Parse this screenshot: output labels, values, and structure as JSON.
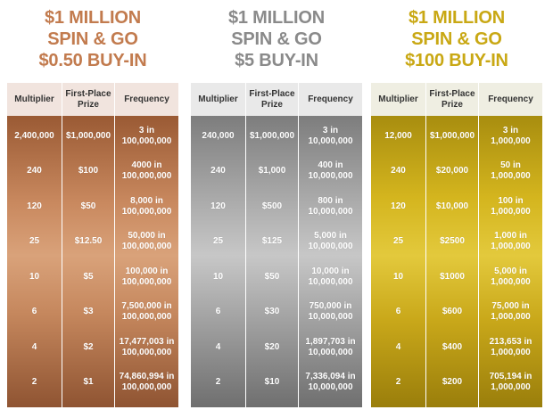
{
  "panels": [
    {
      "title": [
        "$1 MILLION",
        "SPIN & GO",
        "$0.50 BUY-IN"
      ],
      "headers": [
        "Multiplier",
        "First-Place\nPrize",
        "Frequency"
      ],
      "rows": [
        {
          "multiplier": "2,400,000",
          "prize": "$1,000,000",
          "frequency": "3 in\n100,000,000"
        },
        {
          "multiplier": "240",
          "prize": "$100",
          "frequency": "4000 in\n100,000,000"
        },
        {
          "multiplier": "120",
          "prize": "$50",
          "frequency": "8,000 in\n100,000,000"
        },
        {
          "multiplier": "25",
          "prize": "$12.50",
          "frequency": "50,000 in\n100,000,000"
        },
        {
          "multiplier": "10",
          "prize": "$5",
          "frequency": "100,000 in\n100,000,000"
        },
        {
          "multiplier": "6",
          "prize": "$3",
          "frequency": "7,500,000 in\n100,000,000"
        },
        {
          "multiplier": "4",
          "prize": "$2",
          "frequency": "17,477,003 in\n100,000,000"
        },
        {
          "multiplier": "2",
          "prize": "$1",
          "frequency": "74,860,994 in\n100,000,000"
        }
      ]
    },
    {
      "title": [
        "$1 MILLION",
        "SPIN & GO",
        "$5 BUY-IN"
      ],
      "headers": [
        "Multiplier",
        "First-Place\nPrize",
        "Frequency"
      ],
      "rows": [
        {
          "multiplier": "240,000",
          "prize": "$1,000,000",
          "frequency": "3 in\n10,000,000"
        },
        {
          "multiplier": "240",
          "prize": "$1,000",
          "frequency": "400 in\n10,000,000"
        },
        {
          "multiplier": "120",
          "prize": "$500",
          "frequency": "800 in\n10,000,000"
        },
        {
          "multiplier": "25",
          "prize": "$125",
          "frequency": "5,000 in\n10,000,000"
        },
        {
          "multiplier": "10",
          "prize": "$50",
          "frequency": "10,000 in\n10,000,000"
        },
        {
          "multiplier": "6",
          "prize": "$30",
          "frequency": "750,000 in\n10,000,000"
        },
        {
          "multiplier": "4",
          "prize": "$20",
          "frequency": "1,897,703 in\n10,000,000"
        },
        {
          "multiplier": "2",
          "prize": "$10",
          "frequency": "7,336,094 in\n10,000,000"
        }
      ]
    },
    {
      "title": [
        "$1 MILLION",
        "SPIN & GO",
        "$100 BUY-IN"
      ],
      "headers": [
        "Multiplier",
        "First-Place\nPrize",
        "Frequency"
      ],
      "rows": [
        {
          "multiplier": "12,000",
          "prize": "$1,000,000",
          "frequency": "3 in\n1,000,000"
        },
        {
          "multiplier": "240",
          "prize": "$20,000",
          "frequency": "50 in\n1,000,000"
        },
        {
          "multiplier": "120",
          "prize": "$10,000",
          "frequency": "100 in\n1,000,000"
        },
        {
          "multiplier": "25",
          "prize": "$2500",
          "frequency": "1,000 in\n1,000,000"
        },
        {
          "multiplier": "10",
          "prize": "$1000",
          "frequency": "5,000 in\n1,000,000"
        },
        {
          "multiplier": "6",
          "prize": "$600",
          "frequency": "75,000 in\n1,000,000"
        },
        {
          "multiplier": "4",
          "prize": "$400",
          "frequency": "213,653 in\n1,000,000"
        },
        {
          "multiplier": "2",
          "prize": "$200",
          "frequency": "705,194 in\n1,000,000"
        }
      ]
    }
  ],
  "colors": {
    "bronze_title": "#c27b4e",
    "silver_title": "#8a8a8a",
    "gold_title": "#c9a814"
  }
}
